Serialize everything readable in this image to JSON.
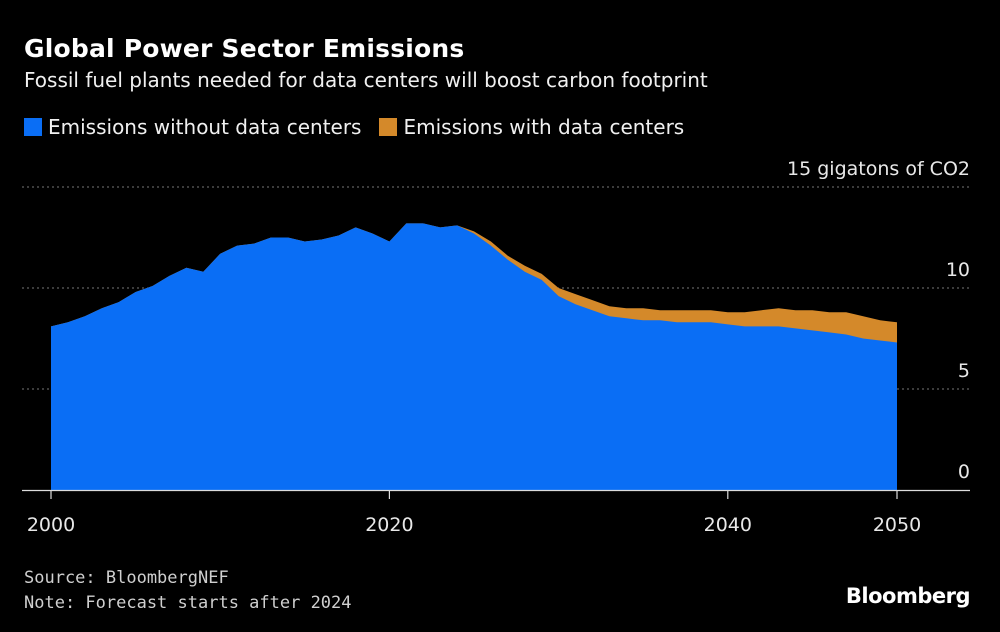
{
  "header": {
    "title": "Global Power Sector Emissions",
    "subtitle": "Fossil fuel plants needed for data centers will boost carbon footprint"
  },
  "legend": [
    {
      "label": "Emissions without data centers",
      "color": "#0a6ef5"
    },
    {
      "label": "Emissions with data centers",
      "color": "#d4892a"
    }
  ],
  "footer": {
    "source": "Source: BloombergNEF",
    "note": "Note: Forecast starts after 2024",
    "brand": "Bloomberg"
  },
  "chart_data": {
    "type": "area",
    "title": "Global Power Sector Emissions",
    "ylabel": "15 gigatons of CO2",
    "xlim": [
      2000,
      2050
    ],
    "ylim": [
      0,
      15
    ],
    "x_ticks": [
      2000,
      2020,
      2040,
      2050
    ],
    "y_ticks": [
      0,
      5,
      10,
      15
    ],
    "y_tick_labels": [
      "0",
      "5",
      "10",
      "15 gigatons of CO2"
    ],
    "grid": true,
    "legend_position": "top-left",
    "colors": {
      "without": "#0a6ef5",
      "with": "#d4892a",
      "grid": "#777777",
      "axis": "#dddddd"
    },
    "x": [
      2000,
      2001,
      2002,
      2003,
      2004,
      2005,
      2006,
      2007,
      2008,
      2009,
      2010,
      2011,
      2012,
      2013,
      2014,
      2015,
      2016,
      2017,
      2018,
      2019,
      2020,
      2021,
      2022,
      2023,
      2024,
      2025,
      2026,
      2027,
      2028,
      2029,
      2030,
      2031,
      2032,
      2033,
      2034,
      2035,
      2036,
      2037,
      2038,
      2039,
      2040,
      2041,
      2042,
      2043,
      2044,
      2045,
      2046,
      2047,
      2048,
      2049,
      2050
    ],
    "series": [
      {
        "name": "Emissions without data centers",
        "values": [
          8.1,
          8.3,
          8.6,
          9.0,
          9.3,
          9.8,
          10.1,
          10.6,
          11.0,
          10.8,
          11.7,
          12.1,
          12.2,
          12.5,
          12.5,
          12.3,
          12.4,
          12.6,
          13.0,
          12.7,
          12.3,
          13.2,
          13.2,
          13.0,
          13.1,
          12.7,
          12.1,
          11.4,
          10.8,
          10.4,
          9.6,
          9.2,
          8.9,
          8.6,
          8.5,
          8.4,
          8.4,
          8.3,
          8.3,
          8.3,
          8.2,
          8.1,
          8.1,
          8.1,
          8.0,
          7.9,
          7.8,
          7.7,
          7.5,
          7.4,
          7.3
        ]
      },
      {
        "name": "Emissions with data centers",
        "values": [
          8.1,
          8.3,
          8.6,
          9.0,
          9.3,
          9.8,
          10.1,
          10.6,
          11.0,
          10.8,
          11.7,
          12.1,
          12.2,
          12.5,
          12.5,
          12.3,
          12.4,
          12.6,
          13.0,
          12.7,
          12.3,
          13.2,
          13.2,
          13.0,
          13.1,
          12.8,
          12.3,
          11.6,
          11.1,
          10.7,
          10.0,
          9.7,
          9.4,
          9.1,
          9.0,
          9.0,
          8.9,
          8.9,
          8.9,
          8.9,
          8.8,
          8.8,
          8.9,
          9.0,
          8.9,
          8.9,
          8.8,
          8.8,
          8.6,
          8.4,
          8.3
        ]
      }
    ]
  }
}
